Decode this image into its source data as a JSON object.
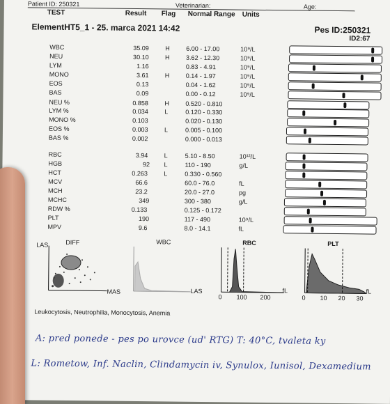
{
  "header": {
    "patient_id": "Patient ID: 250321",
    "veterinarian": "Veterinarian:",
    "age": "Age:",
    "col_test": "TEST",
    "col_result": "Result",
    "col_flag": "Flag",
    "col_range": "Normal Range",
    "col_units": "Units"
  },
  "report": {
    "title": "ElementHT5_1 - 25. marca 2021 14:42",
    "species": "Pes  ID:250321",
    "id2": "ID2:67"
  },
  "rows": [
    {
      "test": "WBC",
      "result": "35.09",
      "flag": "H",
      "range": "6.00 - 17.00",
      "unit": "10⁹/L",
      "marker": 0.93
    },
    {
      "test": "NEU",
      "result": "30.10",
      "flag": "H",
      "range": "3.62 - 12.30",
      "unit": "10⁹/L",
      "marker": 0.93
    },
    {
      "test": "LYM",
      "result": "1.16",
      "flag": "",
      "range": "0.83 - 4.91",
      "unit": "10⁹/L",
      "marker": 0.27
    },
    {
      "test": "MONO",
      "result": "3.61",
      "flag": "H",
      "range": "0.14 - 1.97",
      "unit": "10⁹/L",
      "marker": 0.82
    },
    {
      "test": "EOS",
      "result": "0.13",
      "flag": "",
      "range": "0.04 - 1.62",
      "unit": "10⁹/L",
      "marker": 0.26
    },
    {
      "test": "BAS",
      "result": "0.09",
      "flag": "",
      "range": "0.00 - 0.12",
      "unit": "10⁹/L",
      "marker": 0.61
    },
    {
      "test": "NEU %",
      "result": "0.858",
      "flag": "H",
      "range": "0.520 - 0.810",
      "unit": "",
      "marker": 0.73
    },
    {
      "test": "LYM %",
      "result": "0.034",
      "flag": "L",
      "range": "0.120 - 0.330",
      "unit": "",
      "marker": 0.19
    },
    {
      "test": "MONO %",
      "result": "0.103",
      "flag": "",
      "range": "0.020 - 0.130",
      "unit": "",
      "marker": 0.6
    },
    {
      "test": "EOS %",
      "result": "0.003",
      "flag": "L",
      "range": "0.005 - 0.100",
      "unit": "",
      "marker": 0.22
    },
    {
      "test": "BAS %",
      "result": "0.002",
      "flag": "",
      "range": "0.000 - 0.013",
      "unit": "",
      "marker": 0.28
    },
    {
      "test": "RBC",
      "result": "3.94",
      "flag": "L",
      "range": "5.10 - 8.50",
      "unit": "10¹²/L",
      "marker": 0.21
    },
    {
      "test": "HGB",
      "result": "92",
      "flag": "L",
      "range": "110 - 190",
      "unit": "g/L",
      "marker": 0.22
    },
    {
      "test": "HCT",
      "result": "0.263",
      "flag": "L",
      "range": "0.330 - 0.560",
      "unit": "",
      "marker": 0.22
    },
    {
      "test": "MCV",
      "result": "66.6",
      "flag": "",
      "range": "60.0 - 76.0",
      "unit": "fL",
      "marker": 0.43
    },
    {
      "test": "MCH",
      "result": "23.2",
      "flag": "",
      "range": "20.0 - 27.0",
      "unit": "pg",
      "marker": 0.45
    },
    {
      "test": "MCHC",
      "result": "349",
      "flag": "",
      "range": "300 - 380",
      "unit": "g/L",
      "marker": 0.5
    },
    {
      "test": "RDW %",
      "result": "0.133",
      "flag": "",
      "range": "0.125 - 0.172",
      "unit": "",
      "marker": 0.29
    },
    {
      "test": "PLT",
      "result": "190",
      "flag": "",
      "range": "117 - 490",
      "unit": "10⁹/L",
      "marker": 0.28
    },
    {
      "test": "MPV",
      "result": "9.6",
      "flag": "",
      "range": "8.0 - 14.1",
      "unit": "fL",
      "marker": 0.31
    }
  ],
  "plots": {
    "diff": {
      "label": "DIFF",
      "y_label": "LAS",
      "x_label": "MAS"
    },
    "wbc": {
      "label": "WBC",
      "x_label": "LAS"
    },
    "rbc": {
      "label": "RBC",
      "ticks": [
        "0",
        "100",
        "200"
      ],
      "unit": "fL"
    },
    "plt": {
      "label": "PLT",
      "ticks": [
        "0",
        "10",
        "20",
        "30"
      ],
      "unit": "fL"
    }
  },
  "interpretation": "Leukocytosis, Neutrophilia, Monocytosis, Anemia",
  "handwriting": {
    "line_a": "A:  pred ponede  -  pes po urovce (ud' RTG)  T: 40°C,  tvaleta  ky",
    "line_l": "L:  Rometow,  Inf. Naclin,  Clindamycin iv,  Synulox,  Iunisol,  Dexamedium"
  },
  "colors": {
    "ink": "#2b3a8a",
    "paper": "#f3f3f0"
  }
}
